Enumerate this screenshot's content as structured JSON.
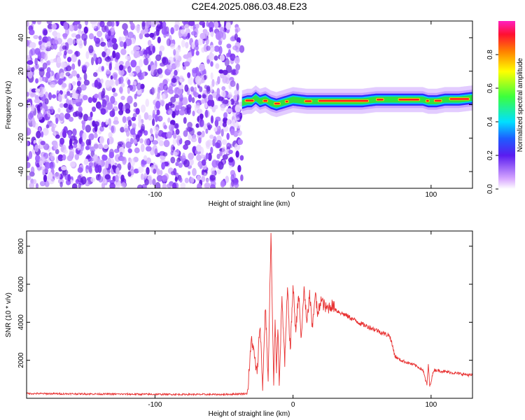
{
  "title": "C2E4.2025.086.03.48.E23",
  "chart_data": [
    {
      "type": "heatmap",
      "xlabel": "Height of straight line (km)",
      "ylabel": "Frequency (Hz)",
      "xlim": [
        -193,
        130
      ],
      "ylim": [
        -50,
        50
      ],
      "x_ticks": [
        -100,
        0,
        100
      ],
      "y_ticks": [
        -40,
        -20,
        0,
        20,
        40
      ],
      "colorbar": {
        "label": "Normalized spectral amplitude",
        "range": [
          0,
          1
        ],
        "ticks": [
          "0.0",
          "0.2",
          "0.4",
          "0.6",
          "0.8"
        ]
      },
      "noise_region_x": [
        -193,
        -37
      ],
      "signal_track": {
        "x": [
          -37,
          -33,
          -30,
          -27,
          -24,
          -20,
          -16,
          -12,
          -8,
          -4,
          0,
          10,
          20,
          30,
          40,
          50,
          60,
          70,
          80,
          88,
          94,
          98,
          104,
          110,
          120,
          130
        ],
        "frequency": [
          1,
          2,
          2,
          4,
          2,
          3,
          1,
          0,
          1,
          2,
          3,
          2,
          2,
          2,
          2,
          2,
          3,
          3,
          3,
          3,
          3,
          2,
          2,
          3,
          3,
          4
        ]
      }
    },
    {
      "type": "line",
      "xlabel": "Height of straight line (km)",
      "ylabel": "SNR (10 * v/v)",
      "xlim": [
        -193,
        130
      ],
      "ylim": [
        0,
        8800
      ],
      "x_ticks": [
        -100,
        0,
        100
      ],
      "y_ticks": [
        2000,
        4000,
        6000,
        8000
      ],
      "color": "#e83232",
      "series": [
        {
          "x": [
            -193,
            -150,
            -100,
            -50,
            -33,
            -30,
            -26,
            -24,
            -22,
            -20,
            -18,
            -16,
            -14,
            -13,
            -12,
            -11,
            -10,
            -8,
            -6,
            -4,
            -2,
            0,
            2,
            4,
            6,
            8,
            10,
            12,
            14,
            16,
            18,
            20,
            24,
            28,
            32,
            40,
            50,
            60,
            66,
            70,
            74,
            78,
            82,
            88,
            94,
            97,
            98,
            99,
            102,
            110,
            120,
            130
          ],
          "y": [
            250,
            230,
            210,
            200,
            250,
            3200,
            1200,
            4000,
            600,
            4900,
            900,
            8700,
            500,
            4200,
            1500,
            3900,
            900,
            5300,
            1800,
            5800,
            2500,
            5900,
            3500,
            5600,
            3000,
            5900,
            3800,
            5500,
            3600,
            5600,
            4300,
            5200,
            4700,
            4900,
            4600,
            4300,
            3900,
            3600,
            3400,
            3300,
            2200,
            2000,
            1900,
            1750,
            1500,
            700,
            1800,
            600,
            1500,
            1400,
            1300,
            1200
          ]
        }
      ]
    }
  ]
}
